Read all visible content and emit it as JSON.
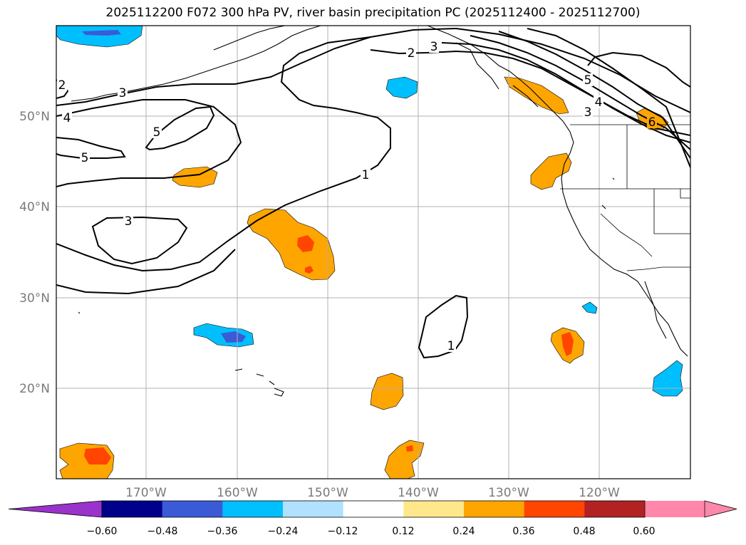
{
  "title": "2025112200 F072 300 hPa PV, river basin precipitation PC (2025112400 - 2025112700)",
  "map": {
    "lon_labels": [
      "170°W",
      "160°W",
      "150°W",
      "140°W",
      "130°W",
      "120°W"
    ],
    "lat_labels": [
      "50°N",
      "40°N",
      "30°N",
      "20°N"
    ],
    "contour_labels": [
      "2",
      "3",
      "3",
      "4",
      "5",
      "5",
      "1",
      "3",
      "1",
      "2",
      "3",
      "5",
      "4",
      "6"
    ]
  },
  "colorbar": {
    "ticks": [
      "−0.60",
      "−0.48",
      "−0.36",
      "−0.24",
      "−0.12",
      "0.12",
      "0.24",
      "0.36",
      "0.48",
      "0.60"
    ],
    "colors": [
      "#9933cc",
      "#00008b",
      "#3b5bd6",
      "#00bfff",
      "#b0e2ff",
      "#ffffff",
      "#ffe88c",
      "#ffa500",
      "#ff4500",
      "#b22222",
      "#ff88aa",
      "#ff88aa"
    ]
  }
}
